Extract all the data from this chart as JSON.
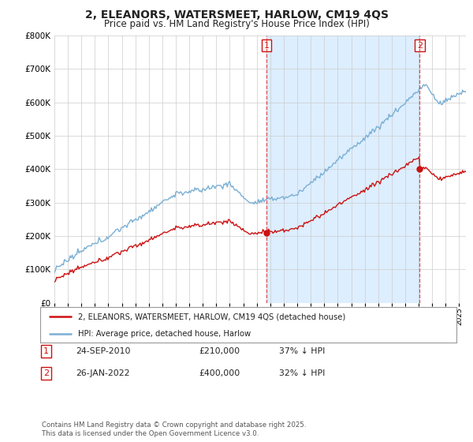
{
  "title": "2, ELEANORS, WATERSMEET, HARLOW, CM19 4QS",
  "subtitle": "Price paid vs. HM Land Registry's House Price Index (HPI)",
  "title_fontsize": 10,
  "subtitle_fontsize": 8.5,
  "ylim": [
    0,
    800000
  ],
  "yticks": [
    0,
    100000,
    200000,
    300000,
    400000,
    500000,
    600000,
    700000,
    800000
  ],
  "background_color": "#ffffff",
  "grid_color": "#cccccc",
  "hpi_color": "#7bafd4",
  "hpi_fill_color": "#ddeeff",
  "price_color": "#cc1111",
  "sale1_x": 2010.73,
  "sale1_price": 210000,
  "sale2_x": 2022.07,
  "sale2_price": 400000,
  "legend_house_label": "2, ELEANORS, WATERSMEET, HARLOW, CM19 4QS (detached house)",
  "legend_hpi_label": "HPI: Average price, detached house, Harlow",
  "table_row1": [
    "1",
    "24-SEP-2010",
    "£210,000",
    "37% ↓ HPI"
  ],
  "table_row2": [
    "2",
    "26-JAN-2022",
    "£400,000",
    "32% ↓ HPI"
  ],
  "footer": "Contains HM Land Registry data © Crown copyright and database right 2025.\nThis data is licensed under the Open Government Licence v3.0.",
  "xmin": 1995,
  "xmax": 2025.5
}
